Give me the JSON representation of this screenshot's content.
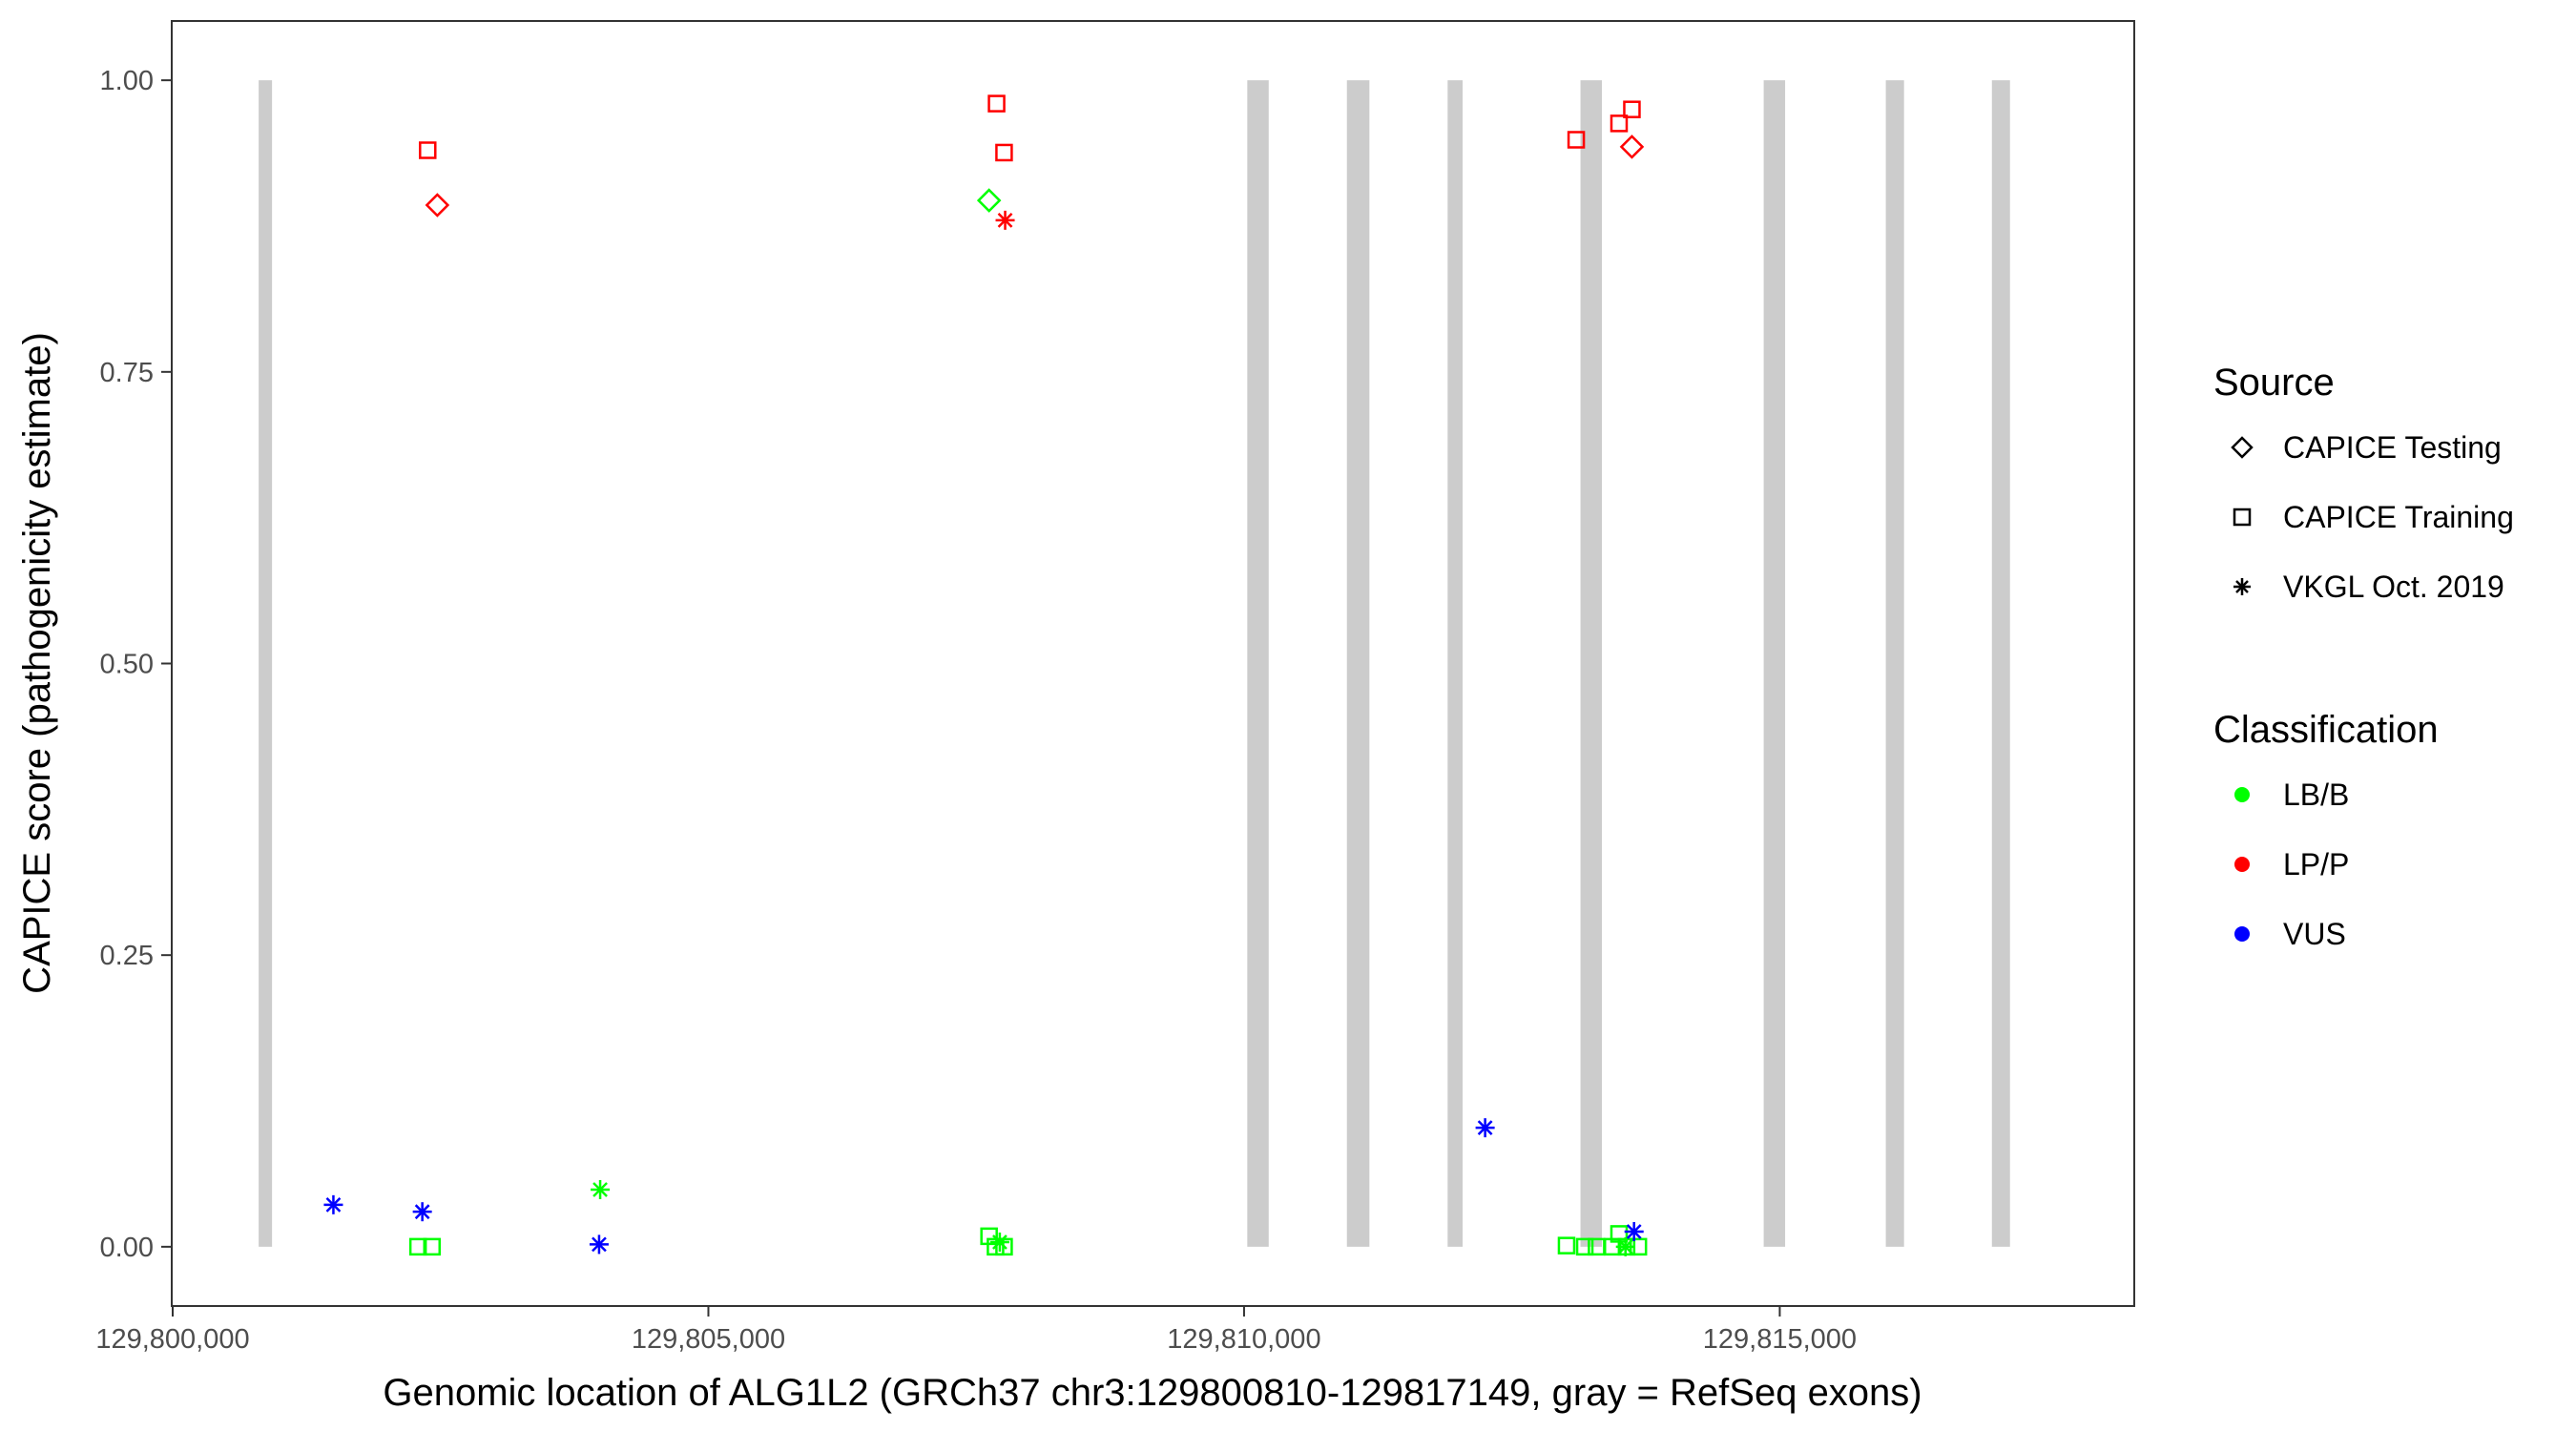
{
  "chart_data": {
    "type": "scatter",
    "title": "",
    "xlabel": "Genomic location of ALG1L2 (GRCh37 chr3:129800810-129817149, gray = RefSeq exons)",
    "ylabel": "CAPICE score (pathogenicity estimate)",
    "xlim": [
      129800000,
      129818300
    ],
    "ylim": [
      -0.05,
      1.05
    ],
    "x_ticks": [
      129800000,
      129805000,
      129810000,
      129815000
    ],
    "x_tick_labels": [
      "129,800,000",
      "129,805,000",
      "129,810,000",
      "129,815,000"
    ],
    "y_ticks": [
      0,
      0.25,
      0.5,
      0.75,
      1.0
    ],
    "y_tick_labels": [
      "0.00",
      "0.25",
      "0.50",
      "0.75",
      "1.00"
    ],
    "grid": false,
    "exons": [
      [
        129800810,
        129800920
      ],
      [
        129810030,
        129810230
      ],
      [
        129810960,
        129811170
      ],
      [
        129811900,
        129812040
      ],
      [
        129813140,
        129813340
      ],
      [
        129814850,
        129815050
      ],
      [
        129815990,
        129816160
      ],
      [
        129816980,
        129817149
      ]
    ],
    "exon_color": "#cccccc",
    "legend_source": {
      "title": "Source",
      "entries": [
        {
          "label": "CAPICE Testing",
          "shape": "diamond"
        },
        {
          "label": "CAPICE Training",
          "shape": "square"
        },
        {
          "label": "VKGL Oct. 2019",
          "shape": "asterisk"
        }
      ]
    },
    "legend_classification": {
      "title": "Classification",
      "entries": [
        {
          "label": "LB/B",
          "color": "#00ff00"
        },
        {
          "label": "LP/P",
          "color": "#ff0000"
        },
        {
          "label": "VUS",
          "color": "#0000ff"
        }
      ]
    },
    "legend_position": "right",
    "points": [
      {
        "x": 129802380,
        "y": 0.94,
        "shape": "square",
        "cls": "LP/P"
      },
      {
        "x": 129802470,
        "y": 0.893,
        "shape": "diamond",
        "cls": "LP/P"
      },
      {
        "x": 129807690,
        "y": 0.98,
        "shape": "square",
        "cls": "LP/P"
      },
      {
        "x": 129807760,
        "y": 0.938,
        "shape": "square",
        "cls": "LP/P"
      },
      {
        "x": 129807620,
        "y": 0.897,
        "shape": "diamond",
        "cls": "LB/B"
      },
      {
        "x": 129807770,
        "y": 0.88,
        "shape": "asterisk",
        "cls": "LP/P"
      },
      {
        "x": 129813100,
        "y": 0.949,
        "shape": "square",
        "cls": "LP/P"
      },
      {
        "x": 129813500,
        "y": 0.963,
        "shape": "square",
        "cls": "LP/P"
      },
      {
        "x": 129813620,
        "y": 0.975,
        "shape": "square",
        "cls": "LP/P"
      },
      {
        "x": 129813620,
        "y": 0.943,
        "shape": "diamond",
        "cls": "LP/P"
      },
      {
        "x": 129801500,
        "y": 0.036,
        "shape": "asterisk",
        "cls": "VUS"
      },
      {
        "x": 129802330,
        "y": 0.03,
        "shape": "asterisk",
        "cls": "VUS"
      },
      {
        "x": 129802290,
        "y": 0.0,
        "shape": "square",
        "cls": "LB/B"
      },
      {
        "x": 129802420,
        "y": 0.0,
        "shape": "square",
        "cls": "LB/B"
      },
      {
        "x": 129803990,
        "y": 0.049,
        "shape": "asterisk",
        "cls": "LB/B"
      },
      {
        "x": 129803980,
        "y": 0.002,
        "shape": "asterisk",
        "cls": "VUS"
      },
      {
        "x": 129807620,
        "y": 0.009,
        "shape": "square",
        "cls": "LB/B"
      },
      {
        "x": 129807680,
        "y": 0.0,
        "shape": "square",
        "cls": "LB/B"
      },
      {
        "x": 129807760,
        "y": 0.0,
        "shape": "square",
        "cls": "LB/B"
      },
      {
        "x": 129807720,
        "y": 0.004,
        "shape": "asterisk",
        "cls": "LB/B"
      },
      {
        "x": 129812250,
        "y": 0.102,
        "shape": "asterisk",
        "cls": "VUS"
      },
      {
        "x": 129813010,
        "y": 0.001,
        "shape": "square",
        "cls": "LB/B"
      },
      {
        "x": 129813180,
        "y": 0.0,
        "shape": "square",
        "cls": "LB/B"
      },
      {
        "x": 129813290,
        "y": 0.0,
        "shape": "square",
        "cls": "LB/B"
      },
      {
        "x": 129813440,
        "y": 0.0,
        "shape": "square",
        "cls": "LB/B"
      },
      {
        "x": 129813500,
        "y": 0.011,
        "shape": "square",
        "cls": "LB/B"
      },
      {
        "x": 129813570,
        "y": 0.0,
        "shape": "square",
        "cls": "LB/B"
      },
      {
        "x": 129813680,
        "y": 0.0,
        "shape": "square",
        "cls": "LB/B"
      },
      {
        "x": 129813560,
        "y": 0.0,
        "shape": "asterisk",
        "cls": "LB/B"
      },
      {
        "x": 129813640,
        "y": 0.013,
        "shape": "asterisk",
        "cls": "VUS"
      }
    ]
  }
}
